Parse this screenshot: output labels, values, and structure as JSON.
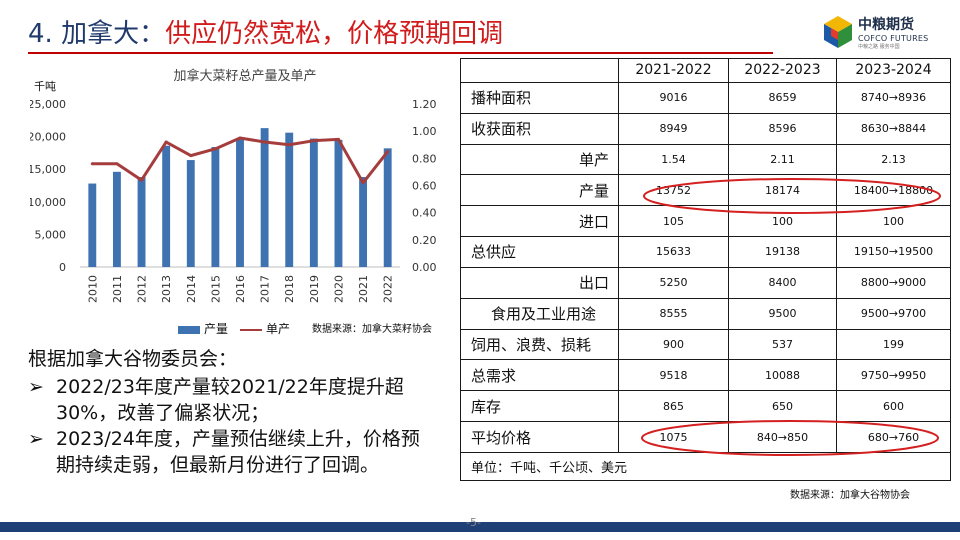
{
  "header": {
    "number": "4. 加拿大：",
    "text": "供应仍然宽松，价格预期回调"
  },
  "logo": {
    "cn": "中粮期货",
    "en": "COFCO FUTURES",
    "sub": "中粮之路  服务中国"
  },
  "chart_data": {
    "type": "bar",
    "title": "加拿大菜籽总产量及单产",
    "unit_label": "千吨",
    "categories": [
      "2010",
      "2011",
      "2012",
      "2013",
      "2014",
      "2015",
      "2016",
      "2017",
      "2018",
      "2019",
      "2020",
      "2021",
      "2022"
    ],
    "series": [
      {
        "name": "产量",
        "axis": "left",
        "type": "bar",
        "color": "#3f72b0",
        "values": [
          12800,
          14600,
          13800,
          18600,
          16400,
          18400,
          19600,
          21300,
          20600,
          19700,
          19500,
          13800,
          18200
        ]
      },
      {
        "name": "单产",
        "axis": "right",
        "type": "line",
        "color": "#a63d3d",
        "values": [
          0.76,
          0.76,
          0.64,
          0.92,
          0.82,
          0.87,
          0.95,
          0.92,
          0.9,
          0.93,
          0.94,
          0.62,
          0.85
        ]
      }
    ],
    "y_left": {
      "min": 0,
      "max": 25000,
      "ticks": [
        "0",
        "5,000",
        "10,000",
        "15,000",
        "20,000",
        "25,000"
      ]
    },
    "y_right": {
      "min": 0,
      "max": 1.2,
      "ticks": [
        "0.00",
        "0.20",
        "0.40",
        "0.60",
        "0.80",
        "1.00",
        "1.20"
      ]
    },
    "legend_position": "bottom",
    "grid": false,
    "source": "数据来源：加拿大菜籽协会"
  },
  "notes": {
    "heading": "根据加拿大谷物委员会：",
    "bullet_symbol": "➢",
    "bullets": [
      "2022/23年度产量较2021/22年度提升超30%，改善了偏紧状况；",
      "2023/24年度，产量预估继续上升，价格预期持续走弱，但最新月份进行了回调。"
    ]
  },
  "table": {
    "headers": [
      "",
      "2021-2022",
      "2022-2023",
      "2023-2024"
    ],
    "rows": [
      {
        "label": "播种面积",
        "values": [
          "9016",
          "8659",
          "8740→8936"
        ]
      },
      {
        "label": "收获面积",
        "values": [
          "8949",
          "8596",
          "8630→8844"
        ]
      },
      {
        "label": "单产",
        "values": [
          "1.54",
          "2.11",
          "2.13"
        ]
      },
      {
        "label": "产量",
        "values": [
          "13752",
          "18174",
          "18400→18800"
        ]
      },
      {
        "label": "进口",
        "values": [
          "105",
          "100",
          "100"
        ]
      },
      {
        "label": "总供应",
        "values": [
          "15633",
          "19138",
          "19150→19500"
        ]
      },
      {
        "label": "出口",
        "values": [
          "5250",
          "8400",
          "8800→9000"
        ]
      },
      {
        "label": "食用及工业用途",
        "values": [
          "8555",
          "9500",
          "9500→9700"
        ]
      },
      {
        "label": "饲用、浪费、损耗",
        "values": [
          "900",
          "537",
          "199"
        ]
      },
      {
        "label": "总需求",
        "values": [
          "9518",
          "10088",
          "9750→9950"
        ]
      },
      {
        "label": "库存",
        "values": [
          "865",
          "650",
          "600"
        ]
      },
      {
        "label": "平均价格",
        "values": [
          "1075",
          "840→850",
          "680→760"
        ]
      }
    ],
    "unit_note": "单位：千吨、千公顷、美元",
    "source": "数据来源：加拿大谷物协会"
  },
  "page_number": "-5-",
  "colors": {
    "title_red": "#d01c1c",
    "title_navy": "#1f3a6b",
    "bar_blue": "#3f72b0",
    "line_red": "#a63d3d",
    "oval_red": "#d42020",
    "footer_navy": "#1f3f77"
  }
}
